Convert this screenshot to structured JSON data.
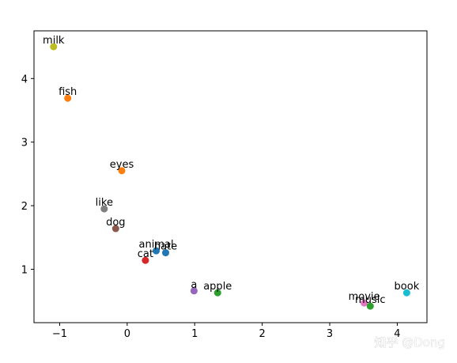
{
  "chart_data": {
    "type": "scatter",
    "title": "",
    "xlabel": "",
    "ylabel": "",
    "xlim": [
      -1.38,
      4.44
    ],
    "ylim": [
      0.16,
      4.75
    ],
    "xticks": [
      -1,
      0,
      1,
      2,
      3,
      4
    ],
    "yticks": [
      1,
      2,
      3,
      4
    ],
    "grid": false,
    "legend": "none",
    "points": [
      {
        "label": "milk",
        "x": -1.09,
        "y": 4.5,
        "color": "#bcbd22"
      },
      {
        "label": "fish",
        "x": -0.88,
        "y": 3.69,
        "color": "#ff7f0e"
      },
      {
        "label": "eyes",
        "x": -0.08,
        "y": 2.55,
        "color": "#ff7f0e"
      },
      {
        "label": "like",
        "x": -0.34,
        "y": 1.95,
        "color": "#7f7f7f"
      },
      {
        "label": "dog",
        "x": -0.17,
        "y": 1.64,
        "color": "#8c564b"
      },
      {
        "label": "animal",
        "x": 0.43,
        "y": 1.29,
        "color": "#1f77b4"
      },
      {
        "label": "hate",
        "x": 0.57,
        "y": 1.26,
        "color": "#1f77b4"
      },
      {
        "label": "cat",
        "x": 0.27,
        "y": 1.14,
        "color": "#d62728"
      },
      {
        "label": "a",
        "x": 0.99,
        "y": 0.66,
        "color": "#9467bd"
      },
      {
        "label": "apple",
        "x": 1.34,
        "y": 0.63,
        "color": "#2ca02c"
      },
      {
        "label": "movie",
        "x": 3.51,
        "y": 0.47,
        "color": "#e377c2"
      },
      {
        "label": "music",
        "x": 3.6,
        "y": 0.42,
        "color": "#2ca02c"
      },
      {
        "label": "book",
        "x": 4.14,
        "y": 0.63,
        "color": "#17becf"
      }
    ]
  },
  "watermark": {
    "text": "知乎 @Dong"
  }
}
